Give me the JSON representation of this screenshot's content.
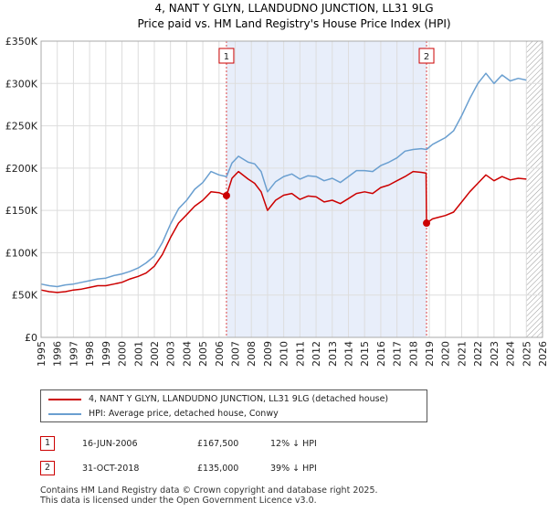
{
  "chart_data": {
    "type": "line",
    "title": "4, NANT Y GLYN, LLANDUDNO JUNCTION, LL31 9LG",
    "subtitle": "Price paid vs. HM Land Registry's House Price Index (HPI)",
    "xlim": [
      1995,
      2026
    ],
    "ylim": [
      0,
      350000
    ],
    "x_ticks": [
      "1995",
      "1996",
      "1997",
      "1998",
      "1999",
      "2000",
      "2001",
      "2002",
      "2003",
      "2004",
      "2005",
      "2006",
      "2007",
      "2008",
      "2009",
      "2010",
      "2011",
      "2012",
      "2013",
      "2014",
      "2015",
      "2016",
      "2017",
      "2018",
      "2019",
      "2020",
      "2021",
      "2022",
      "2023",
      "2024",
      "2025",
      "2026"
    ],
    "y_ticks": [
      {
        "value": 0,
        "label": "£0"
      },
      {
        "value": 50000,
        "label": "£50K"
      },
      {
        "value": 100000,
        "label": "£100K"
      },
      {
        "value": 150000,
        "label": "£150K"
      },
      {
        "value": 200000,
        "label": "£200K"
      },
      {
        "value": 250000,
        "label": "£250K"
      },
      {
        "value": 300000,
        "label": "£300K"
      },
      {
        "value": 350000,
        "label": "£350K"
      }
    ],
    "grid": true,
    "shaded_region": [
      2006.46,
      2018.83
    ],
    "future_hatch_from": 2025.0,
    "series": [
      {
        "name": "4, NANT Y GLYN, LLANDUDNO JUNCTION, LL31 9LG (detached house)",
        "color": "#cc0000",
        "points": [
          [
            1995.0,
            56000
          ],
          [
            1995.5,
            54000
          ],
          [
            1996.0,
            53000
          ],
          [
            1996.5,
            54000
          ],
          [
            1997.0,
            56000
          ],
          [
            1997.5,
            57000
          ],
          [
            1998.0,
            59000
          ],
          [
            1998.5,
            61000
          ],
          [
            1999.0,
            61000
          ],
          [
            1999.5,
            63000
          ],
          [
            2000.0,
            65000
          ],
          [
            2000.5,
            69000
          ],
          [
            2001.0,
            72000
          ],
          [
            2001.5,
            76000
          ],
          [
            2002.0,
            84000
          ],
          [
            2002.5,
            98000
          ],
          [
            2003.0,
            118000
          ],
          [
            2003.5,
            135000
          ],
          [
            2004.0,
            145000
          ],
          [
            2004.5,
            155000
          ],
          [
            2005.0,
            162000
          ],
          [
            2005.5,
            172000
          ],
          [
            2006.0,
            171000
          ],
          [
            2006.46,
            167500
          ],
          [
            2006.8,
            188000
          ],
          [
            2007.2,
            196000
          ],
          [
            2007.8,
            187000
          ],
          [
            2008.2,
            182000
          ],
          [
            2008.6,
            172000
          ],
          [
            2009.0,
            150000
          ],
          [
            2009.5,
            162000
          ],
          [
            2010.0,
            168000
          ],
          [
            2010.5,
            170000
          ],
          [
            2011.0,
            163000
          ],
          [
            2011.5,
            167000
          ],
          [
            2012.0,
            166000
          ],
          [
            2012.5,
            160000
          ],
          [
            2013.0,
            162000
          ],
          [
            2013.5,
            158000
          ],
          [
            2014.0,
            164000
          ],
          [
            2014.5,
            170000
          ],
          [
            2015.0,
            172000
          ],
          [
            2015.5,
            170000
          ],
          [
            2016.0,
            177000
          ],
          [
            2016.5,
            180000
          ],
          [
            2017.0,
            185000
          ],
          [
            2017.5,
            190000
          ],
          [
            2018.0,
            196000
          ],
          [
            2018.5,
            195000
          ],
          [
            2018.8,
            194000
          ],
          [
            2018.83,
            135000
          ],
          [
            2019.2,
            140000
          ],
          [
            2019.6,
            142000
          ],
          [
            2020.0,
            144000
          ],
          [
            2020.5,
            148000
          ],
          [
            2021.0,
            160000
          ],
          [
            2021.5,
            172000
          ],
          [
            2022.0,
            182000
          ],
          [
            2022.5,
            192000
          ],
          [
            2023.0,
            185000
          ],
          [
            2023.5,
            190000
          ],
          [
            2024.0,
            186000
          ],
          [
            2024.5,
            188000
          ],
          [
            2025.0,
            187000
          ]
        ]
      },
      {
        "name": "HPI: Average price, detached house, Conwy",
        "color": "#6a9fd0",
        "points": [
          [
            1995.0,
            63000
          ],
          [
            1995.5,
            61000
          ],
          [
            1996.0,
            60000
          ],
          [
            1996.5,
            62000
          ],
          [
            1997.0,
            63000
          ],
          [
            1997.5,
            65000
          ],
          [
            1998.0,
            67000
          ],
          [
            1998.5,
            69000
          ],
          [
            1999.0,
            70000
          ],
          [
            1999.5,
            73000
          ],
          [
            2000.0,
            75000
          ],
          [
            2000.5,
            78000
          ],
          [
            2001.0,
            82000
          ],
          [
            2001.5,
            88000
          ],
          [
            2002.0,
            96000
          ],
          [
            2002.5,
            112000
          ],
          [
            2003.0,
            134000
          ],
          [
            2003.5,
            152000
          ],
          [
            2004.0,
            162000
          ],
          [
            2004.5,
            175000
          ],
          [
            2005.0,
            183000
          ],
          [
            2005.5,
            196000
          ],
          [
            2006.0,
            192000
          ],
          [
            2006.46,
            190000
          ],
          [
            2006.8,
            206000
          ],
          [
            2007.2,
            214000
          ],
          [
            2007.8,
            207000
          ],
          [
            2008.2,
            205000
          ],
          [
            2008.6,
            196000
          ],
          [
            2009.0,
            172000
          ],
          [
            2009.5,
            184000
          ],
          [
            2010.0,
            190000
          ],
          [
            2010.5,
            193000
          ],
          [
            2011.0,
            187000
          ],
          [
            2011.5,
            191000
          ],
          [
            2012.0,
            190000
          ],
          [
            2012.5,
            185000
          ],
          [
            2013.0,
            188000
          ],
          [
            2013.5,
            183000
          ],
          [
            2014.0,
            190000
          ],
          [
            2014.5,
            197000
          ],
          [
            2015.0,
            197000
          ],
          [
            2015.5,
            196000
          ],
          [
            2016.0,
            203000
          ],
          [
            2016.5,
            207000
          ],
          [
            2017.0,
            212000
          ],
          [
            2017.5,
            220000
          ],
          [
            2018.0,
            222000
          ],
          [
            2018.5,
            223000
          ],
          [
            2018.83,
            222000
          ],
          [
            2019.2,
            228000
          ],
          [
            2019.6,
            232000
          ],
          [
            2020.0,
            236000
          ],
          [
            2020.5,
            244000
          ],
          [
            2021.0,
            262000
          ],
          [
            2021.5,
            282000
          ],
          [
            2022.0,
            300000
          ],
          [
            2022.5,
            312000
          ],
          [
            2023.0,
            300000
          ],
          [
            2023.5,
            310000
          ],
          [
            2024.0,
            303000
          ],
          [
            2024.5,
            306000
          ],
          [
            2025.0,
            304000
          ]
        ]
      }
    ],
    "sale_markers": [
      {
        "label": "1",
        "x": 2006.46,
        "y": 167500
      },
      {
        "label": "2",
        "x": 2018.83,
        "y": 135000
      }
    ]
  },
  "legend": {
    "items": [
      {
        "label": "4, NANT Y GLYN, LLANDUDNO JUNCTION, LL31 9LG (detached house)",
        "color": "#cc0000"
      },
      {
        "label": "HPI: Average price, detached house, Conwy",
        "color": "#6a9fd0"
      }
    ]
  },
  "transactions": [
    {
      "num": "1",
      "date": "16-JUN-2006",
      "price": "£167,500",
      "hpi": "12% ↓ HPI"
    },
    {
      "num": "2",
      "date": "31-OCT-2018",
      "price": "£135,000",
      "hpi": "39% ↓ HPI"
    }
  ],
  "footer": {
    "line1": "Contains HM Land Registry data © Crown copyright and database right 2025.",
    "line2": "This data is licensed under the Open Government Licence v3.0."
  }
}
